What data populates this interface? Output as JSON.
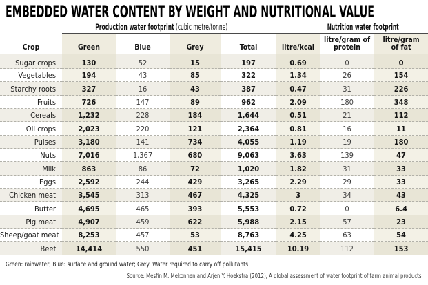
{
  "title": "EMBEDDED WATER CONTENT BY WEIGHT AND NUTRITIONAL VALUE",
  "footnote": "Green: rainwater; Blue: surface and ground water; Grey: Water required to carry off pollutants",
  "source": "Source: Mesfin M. Mekonnen and Arjen Y. Hoekstra (2012), A global assessment of water footprint of farm animal products",
  "colors": {
    "background": "#ffffff",
    "shaded_column": "#f3f1e6",
    "shaded_column_on_stripe": "#e8e5d6",
    "row_stripe": "#f0eee7",
    "header_shaded_column": "#efecdf",
    "rule_line": "#4a4a4a",
    "dashed_separator": "#b2b1a9",
    "text": "#1a1a1a"
  },
  "chart_data": {
    "type": "table",
    "title": "EMBEDDED WATER CONTENT BY WEIGHT AND NUTRITIONAL VALUE",
    "column_groups": [
      {
        "label": "Production water footprint",
        "unit": "(cubic metre/tonne)",
        "columns": [
          "Green",
          "Blue",
          "Grey",
          "Total"
        ]
      },
      {
        "label": "Nutrition water footprint",
        "unit": "",
        "columns": [
          "litre/kcal",
          "litre/gram of protein",
          "litre/gram of fat"
        ]
      }
    ],
    "columns": [
      "Crop",
      "Green",
      "Blue",
      "Grey",
      "Total",
      "litre/kcal",
      "litre/gram of protein",
      "litre/gram of fat"
    ],
    "rows": [
      [
        "Sugar crops",
        "130",
        "52",
        "15",
        "197",
        "0.69",
        "0",
        "0"
      ],
      [
        "Vegetables",
        "194",
        "43",
        "85",
        "322",
        "1.34",
        "26",
        "154"
      ],
      [
        "Starchy roots",
        "327",
        "16",
        "43",
        "387",
        "0.47",
        "31",
        "226"
      ],
      [
        "Fruits",
        "726",
        "147",
        "89",
        "962",
        "2.09",
        "180",
        "348"
      ],
      [
        "Cereals",
        "1,232",
        "228",
        "184",
        "1,644",
        "0.51",
        "21",
        "112"
      ],
      [
        "Oil crops",
        "2,023",
        "220",
        "121",
        "2,364",
        "0.81",
        "16",
        "11"
      ],
      [
        "Pulses",
        "3,180",
        "141",
        "734",
        "4,055",
        "1.19",
        "19",
        "180"
      ],
      [
        "Nuts",
        "7,016",
        "1,367",
        "680",
        "9,063",
        "3.63",
        "139",
        "47"
      ],
      [
        "Milk",
        "863",
        "86",
        "72",
        "1,020",
        "1.82",
        "31",
        "33"
      ],
      [
        "Eggs",
        "2,592",
        "244",
        "429",
        "3,265",
        "2.29",
        "29",
        "33"
      ],
      [
        "Chicken meat",
        "3,545",
        "313",
        "467",
        "4,325",
        "3",
        "34",
        "43"
      ],
      [
        "Butter",
        "4,695",
        "465",
        "393",
        "5,553",
        "0.72",
        "0",
        "6.4"
      ],
      [
        "Pig meat",
        "4,907",
        "459",
        "622",
        "5,988",
        "2.15",
        "57",
        "23"
      ],
      [
        "Sheep/goat meat",
        "8,253",
        "457",
        "53",
        "8,763",
        "4.25",
        "63",
        "54"
      ],
      [
        "Beef",
        "14,414",
        "550",
        "451",
        "15,415",
        "10.19",
        "112",
        "153"
      ]
    ],
    "footnote": "Green: rainwater; Blue: surface and ground water; Grey: Water required to carry off pollutants",
    "source": "Source: Mesfin M. Mekonnen and Arjen Y. Hoekstra (2012), A global assessment of water footprint of farm animal products"
  }
}
